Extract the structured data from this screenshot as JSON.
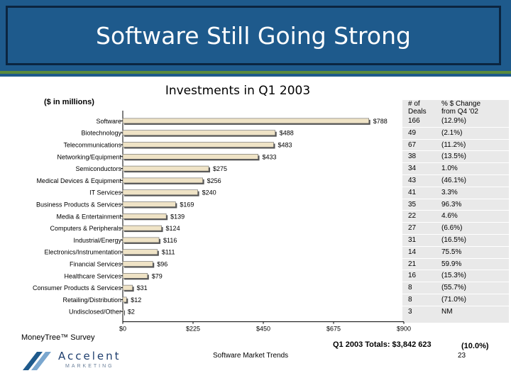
{
  "slide": {
    "title": "Software Still Going Strong",
    "units": "($ in millions)",
    "survey": "MoneyTree™ Survey",
    "totals": "Q1 2003 Totals: $3,842  623",
    "totals_change": "(10.0%)",
    "footer": "Software Market Trends",
    "page": "23",
    "logo_text": "Accelent",
    "logo_sub": "MARKETING"
  },
  "table": {
    "header_deals": "# of Deals",
    "header_change": "% $ Change from Q4 '02",
    "rows": [
      {
        "deals": "166",
        "change": "(12.9%)"
      },
      {
        "deals": "49",
        "change": "(2.1%)"
      },
      {
        "deals": "67",
        "change": "(11.2%)"
      },
      {
        "deals": "38",
        "change": "(13.5%)"
      },
      {
        "deals": "34",
        "change": "1.0%"
      },
      {
        "deals": "43",
        "change": "(46.1%)"
      },
      {
        "deals": "41",
        "change": "3.3%"
      },
      {
        "deals": "35",
        "change": "96.3%"
      },
      {
        "deals": "22",
        "change": "4.6%"
      },
      {
        "deals": "27",
        "change": "(6.6%)"
      },
      {
        "deals": "31",
        "change": "(16.5%)"
      },
      {
        "deals": "14",
        "change": "75.5%"
      },
      {
        "deals": "21",
        "change": "59.9%"
      },
      {
        "deals": "16",
        "change": "(15.3%)"
      },
      {
        "deals": "8",
        "change": "(55.7%)"
      },
      {
        "deals": "8",
        "change": "(71.0%)"
      },
      {
        "deals": "3",
        "change": "NM"
      }
    ]
  },
  "chart_data": {
    "type": "bar",
    "orientation": "horizontal",
    "title": "Investments in Q1 2003",
    "categories": [
      "Software",
      "Biotechnology",
      "Telecommunications",
      "Networking/Equipment",
      "Semiconductors",
      "Medical Devices & Equipment",
      "IT Services",
      "Business Products & Services",
      "Media & Entertainment",
      "Computers & Peripherals",
      "Industrial/Energy",
      "Electronics/Instrumentation",
      "Financial Services",
      "Healthcare Services",
      "Consumer Products & Services",
      "Retailing/Distribution",
      "Undisclosed/Other"
    ],
    "values": [
      788,
      488,
      483,
      433,
      275,
      256,
      240,
      169,
      139,
      124,
      116,
      111,
      96,
      79,
      31,
      12,
      2
    ],
    "value_labels": [
      "$788",
      "$488",
      "$483",
      "$433",
      "$275",
      "$256",
      "$240",
      "$169",
      "$139",
      "$124",
      "$116",
      "$111",
      "$96",
      "$79",
      "$31",
      "$12",
      "$2"
    ],
    "xlim": [
      0,
      900
    ],
    "xticks": [
      0,
      225,
      450,
      675,
      900
    ],
    "xtick_labels": [
      "$0",
      "$225",
      "$450",
      "$675",
      "$900"
    ],
    "grid": false,
    "colors": {
      "bar": "#efe3c6",
      "bar_shadow": "#555555",
      "table_bg": "#e9e9e9",
      "title_bg": "#1e5a8c",
      "accent_line": "#5a8a3c"
    }
  }
}
